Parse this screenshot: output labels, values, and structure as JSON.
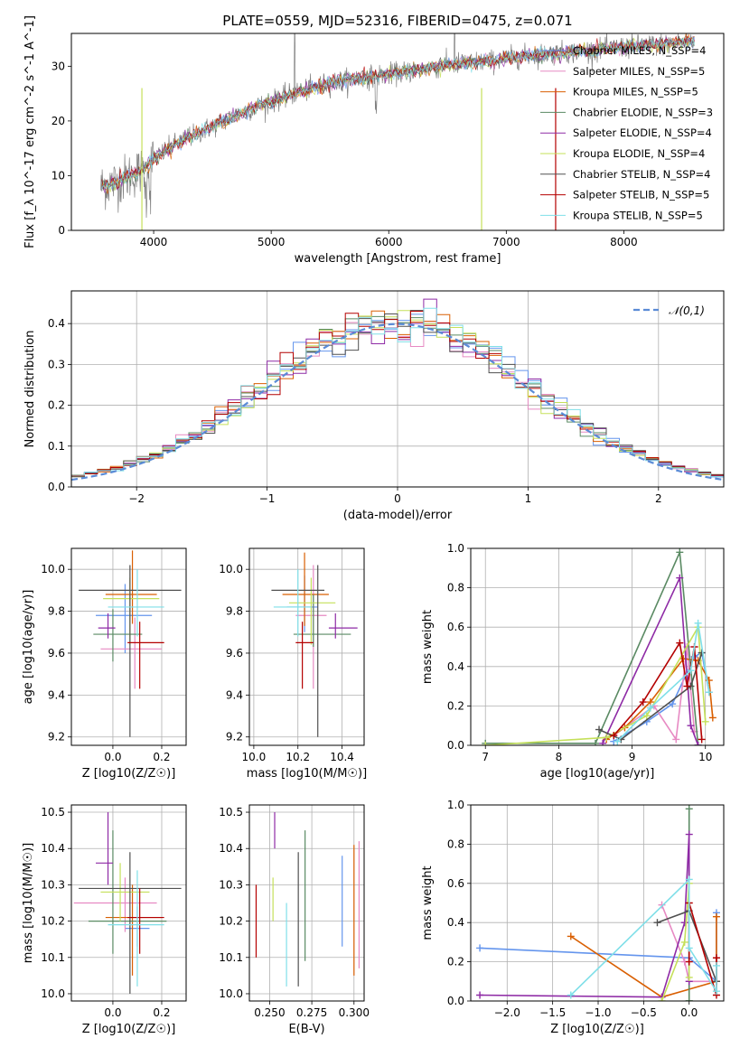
{
  "page": {
    "title": "PLATE=0559, MJD=52316, FIBERID=0475, z=0.071"
  },
  "colors": {
    "series": [
      "#6495ed",
      "#e78ac3",
      "#d95f02",
      "#5a8a63",
      "#8e2aa5",
      "#c5e05a",
      "#505050",
      "#b40000",
      "#7fdfe8"
    ]
  },
  "chart_data": [
    {
      "id": "spectrum",
      "type": "line",
      "title": "PLATE=0559, MJD=52316, FIBERID=0475, z=0.071",
      "xlabel": "wavelength [Angstrom, rest frame]",
      "ylabel": "Flux [f_λ 10^-17 erg cm^-2 s^-1 A^-1]",
      "xlim": [
        3300,
        8850
      ],
      "ylim": [
        0,
        36
      ],
      "xticks": [
        4000,
        5000,
        6000,
        7000,
        8000
      ],
      "yticks": [
        0,
        10,
        20,
        30
      ],
      "grid": false,
      "legend": "right",
      "series_names": [
        "Chabrier MILES, N_SSP=4",
        "Salpeter MILES, N_SSP=5",
        "Kroupa MILES, N_SSP=5",
        "Chabrier ELODIE, N_SSP=3",
        "Salpeter ELODIE, N_SSP=4",
        "Kroupa ELODIE, N_SSP=4",
        "Chabrier STELIB, N_SSP=4",
        "Salpeter STELIB, N_SSP=5",
        "Kroupa STELIB, N_SSP=5"
      ],
      "data_continuum": {
        "x": [
          3550,
          3700,
          3900,
          4000,
          4200,
          4500,
          4800,
          5000,
          5200,
          5500,
          5800,
          6000,
          6300,
          6600,
          6900,
          7000,
          7200,
          7500,
          7800,
          8000,
          8300,
          8600
        ],
        "y": [
          8,
          9,
          11,
          13,
          16,
          19,
          22,
          23.5,
          25,
          27,
          28,
          28.5,
          29.5,
          30.5,
          31,
          31.5,
          32,
          32.5,
          33,
          33.5,
          34,
          34.5
        ]
      }
    },
    {
      "id": "residuals",
      "type": "histogram",
      "xlabel": "(data-model)/error",
      "ylabel": "Normed distribution",
      "xlim": [
        -2.5,
        2.5
      ],
      "ylim": [
        0,
        0.48
      ],
      "xticks": [
        -2,
        -1,
        0,
        1,
        2
      ],
      "yticks": [
        0.0,
        0.1,
        0.2,
        0.3,
        0.4
      ],
      "grid": true,
      "legend": "top-right",
      "reference_label": "𝒩(0,1)",
      "bin_width": 0.1
    },
    {
      "id": "age-vs-Z",
      "type": "errorbar",
      "xlabel": "Z [log10(Z/Z☉)]",
      "ylabel": "age  [log10(age/yr)]",
      "xlim": [
        -0.17,
        0.3
      ],
      "ylim": [
        9.16,
        10.1
      ],
      "xticks": [
        0.0,
        0.2
      ],
      "yticks": [
        9.2,
        9.4,
        9.6,
        9.8,
        10.0
      ],
      "grid": true,
      "points": [
        {
          "x": 0.05,
          "y": 9.78,
          "xerr": [
            0.12,
            0.11
          ],
          "yerr": [
            0.18,
            0.15
          ]
        },
        {
          "x": 0.09,
          "y": 9.62,
          "xerr": [
            0.14,
            0.11
          ],
          "yerr": [
            0.19,
            0.15
          ]
        },
        {
          "x": 0.08,
          "y": 9.88,
          "xerr": [
            0.11,
            0.1
          ],
          "yerr": [
            0.14,
            0.21
          ]
        },
        {
          "x": 0.0,
          "y": 9.69,
          "xerr": [
            0.08,
            0.12
          ],
          "yerr": [
            0.13,
            0.12
          ]
        },
        {
          "x": -0.02,
          "y": 9.72,
          "xerr": [
            0.04,
            0.03
          ],
          "yerr": [
            0.05,
            0.07
          ]
        },
        {
          "x": 0.07,
          "y": 9.86,
          "xerr": [
            0.11,
            0.12
          ],
          "yerr": [
            0.22,
            0.1
          ]
        },
        {
          "x": 0.07,
          "y": 9.9,
          "xerr": [
            0.21,
            0.21
          ],
          "yerr": [
            0.7,
            0.12
          ]
        },
        {
          "x": 0.11,
          "y": 9.65,
          "xerr": [
            0.05,
            0.1
          ],
          "yerr": [
            0.22,
            0.1
          ]
        },
        {
          "x": 0.1,
          "y": 9.82,
          "xerr": [
            0.12,
            0.11
          ],
          "yerr": [
            0.14,
            0.18
          ]
        }
      ]
    },
    {
      "id": "age-vs-mass",
      "type": "errorbar",
      "xlabel": "mass [log10(M/M☉)]",
      "ylabel": "",
      "xlim": [
        9.98,
        10.5
      ],
      "ylim": [
        9.16,
        10.1
      ],
      "xticks": [
        10.0,
        10.2,
        10.4
      ],
      "yticks": [
        9.2,
        9.4,
        9.6,
        9.8,
        10.0
      ],
      "grid": true,
      "points": [
        {
          "x": 10.23,
          "y": 9.82,
          "xerr": [
            0.08,
            0.06
          ],
          "yerr": [
            0.12,
            0.15
          ]
        },
        {
          "x": 10.27,
          "y": 9.78,
          "xerr": [
            0.08,
            0.06
          ],
          "yerr": [
            0.35,
            0.24
          ]
        },
        {
          "x": 10.23,
          "y": 9.88,
          "xerr": [
            0.1,
            0.11
          ],
          "yerr": [
            0.15,
            0.2
          ]
        },
        {
          "x": 10.27,
          "y": 9.69,
          "xerr": [
            0.09,
            0.17
          ],
          "yerr": [
            0.06,
            0.19
          ]
        },
        {
          "x": 10.37,
          "y": 9.72,
          "xerr": [
            0.03,
            0.1
          ],
          "yerr": [
            0.05,
            0.07
          ]
        },
        {
          "x": 10.26,
          "y": 9.84,
          "xerr": [
            0.1,
            0.11
          ],
          "yerr": [
            0.2,
            0.12
          ]
        },
        {
          "x": 10.29,
          "y": 9.9,
          "xerr": [
            0.21,
            0.03
          ],
          "yerr": [
            0.7,
            0.12
          ]
        },
        {
          "x": 10.22,
          "y": 9.65,
          "xerr": [
            0.03,
            0.05
          ],
          "yerr": [
            0.22,
            0.1
          ]
        },
        {
          "x": 10.2,
          "y": 9.82,
          "xerr": [
            0.11,
            0.06
          ],
          "yerr": [
            0.14,
            0.18
          ]
        }
      ]
    },
    {
      "id": "massweight-vs-age",
      "type": "line",
      "xlabel": "age  [log10(age/yr)]",
      "ylabel": "mass weight",
      "xlim": [
        6.8,
        10.25
      ],
      "ylim": [
        0,
        1
      ],
      "xticks": [
        7,
        8,
        9,
        10
      ],
      "yticks": [
        0.0,
        0.2,
        0.4,
        0.6,
        0.8,
        1.0
      ],
      "grid": true,
      "series": [
        {
          "x": [
            8.75,
            9.2,
            9.55,
            9.85,
            9.95,
            10.05
          ],
          "y": [
            0.02,
            0.12,
            0.21,
            0.45,
            0.47,
            0.27
          ]
        },
        {
          "x": [
            8.75,
            9.3,
            9.6,
            9.75,
            9.85
          ],
          "y": [
            0.05,
            0.2,
            0.03,
            0.5,
            0.07
          ]
        },
        {
          "x": [
            8.65,
            8.9,
            9.25,
            9.7,
            9.9,
            10.05,
            10.1
          ],
          "y": [
            0.03,
            0.09,
            0.22,
            0.44,
            0.43,
            0.33,
            0.14
          ]
        },
        {
          "x": [
            7.0,
            8.5,
            9.65,
            9.9
          ],
          "y": [
            0.01,
            0.01,
            0.98,
            0.0
          ]
        },
        {
          "x": [
            8.6,
            9.65,
            9.8,
            9.9
          ],
          "y": [
            0.01,
            0.85,
            0.1,
            0.0
          ]
        },
        {
          "x": [
            7.0,
            8.65,
            9.2,
            9.9,
            10.0
          ],
          "y": [
            0.0,
            0.04,
            0.15,
            0.6,
            0.12
          ]
        },
        {
          "x": [
            8.55,
            8.85,
            9.8,
            9.95
          ],
          "y": [
            0.08,
            0.03,
            0.3,
            0.47
          ]
        },
        {
          "x": [
            8.75,
            9.15,
            9.65,
            9.75,
            9.85,
            9.95
          ],
          "y": [
            0.05,
            0.22,
            0.52,
            0.3,
            0.5,
            0.03
          ]
        },
        {
          "x": [
            8.8,
            9.25,
            9.8,
            9.9,
            10.05
          ],
          "y": [
            0.02,
            0.19,
            0.38,
            0.62,
            0.27
          ]
        }
      ]
    },
    {
      "id": "mass-vs-Z",
      "type": "errorbar",
      "xlabel": "Z [log10(Z/Z☉)]",
      "ylabel": "mass [log10(M/M☉)]",
      "xlim": [
        -0.17,
        0.3
      ],
      "ylim": [
        9.98,
        10.52
      ],
      "xticks": [
        0.0,
        0.2
      ],
      "yticks": [
        10.0,
        10.1,
        10.2,
        10.3,
        10.4,
        10.5
      ],
      "grid": true,
      "points": [
        {
          "x": 0.1,
          "y": 10.18,
          "xerr": [
            0.05,
            0.05
          ],
          "yerr": [
            0.05,
            0.06
          ]
        },
        {
          "x": 0.05,
          "y": 10.25,
          "xerr": [
            0.21,
            0.13
          ],
          "yerr": [
            0.08,
            0.07
          ]
        },
        {
          "x": 0.08,
          "y": 10.21,
          "xerr": [
            0.11,
            0.12
          ],
          "yerr": [
            0.16,
            0.09
          ]
        },
        {
          "x": 0.0,
          "y": 10.2,
          "xerr": [
            0.1,
            0.22
          ],
          "yerr": [
            0.09,
            0.25
          ]
        },
        {
          "x": -0.02,
          "y": 10.36,
          "xerr": [
            0.05,
            0.02
          ],
          "yerr": [
            0.06,
            0.14
          ]
        },
        {
          "x": 0.03,
          "y": 10.28,
          "xerr": [
            0.08,
            0.12
          ],
          "yerr": [
            0.08,
            0.08
          ]
        },
        {
          "x": 0.07,
          "y": 10.29,
          "xerr": [
            0.21,
            0.21
          ],
          "yerr": [
            0.29,
            0.1
          ]
        },
        {
          "x": 0.11,
          "y": 10.21,
          "xerr": [
            0.05,
            0.1
          ],
          "yerr": [
            0.1,
            0.08
          ]
        },
        {
          "x": 0.1,
          "y": 10.19,
          "xerr": [
            0.12,
            0.11
          ],
          "yerr": [
            0.17,
            0.15
          ]
        }
      ]
    },
    {
      "id": "mass-vs-ebv",
      "type": "errorbar",
      "xlabel": "E(B-V)",
      "ylabel": "",
      "xlim": [
        0.238,
        0.306
      ],
      "ylim": [
        9.98,
        10.52
      ],
      "xticks": [
        0.25,
        0.275,
        0.3
      ],
      "yticks": [
        10.0,
        10.1,
        10.2,
        10.3,
        10.4,
        10.5
      ],
      "grid": true,
      "points": [
        {
          "x": 0.293,
          "y": 10.26,
          "xerr": [
            0,
            0
          ],
          "yerr": [
            0.13,
            0.12
          ]
        },
        {
          "x": 0.303,
          "y": 10.25,
          "xerr": [
            0,
            0
          ],
          "yerr": [
            0.18,
            0.17
          ]
        },
        {
          "x": 0.3,
          "y": 10.23,
          "xerr": [
            0,
            0
          ],
          "yerr": [
            0.18,
            0.18
          ]
        },
        {
          "x": 0.271,
          "y": 10.27,
          "xerr": [
            0,
            0
          ],
          "yerr": [
            0.18,
            0.18
          ]
        },
        {
          "x": 0.253,
          "y": 10.45,
          "xerr": [
            0,
            0
          ],
          "yerr": [
            0.05,
            0.05
          ]
        },
        {
          "x": 0.252,
          "y": 10.25,
          "xerr": [
            0,
            0
          ],
          "yerr": [
            0.05,
            0.07
          ]
        },
        {
          "x": 0.267,
          "y": 10.19,
          "xerr": [
            0,
            0
          ],
          "yerr": [
            0.17,
            0.2
          ]
        },
        {
          "x": 0.242,
          "y": 10.2,
          "xerr": [
            0,
            0
          ],
          "yerr": [
            0.1,
            0.1
          ]
        },
        {
          "x": 0.26,
          "y": 10.13,
          "xerr": [
            0,
            0
          ],
          "yerr": [
            0.11,
            0.12
          ]
        }
      ]
    },
    {
      "id": "massweight-vs-Z",
      "type": "line",
      "xlabel": "Z [log10(Z/Z☉)]",
      "ylabel": "mass weight",
      "xlim": [
        -2.4,
        0.38
      ],
      "ylim": [
        0,
        1
      ],
      "xticks": [
        -2.0,
        -1.5,
        -1.0,
        -0.5,
        0.0
      ],
      "yticks": [
        0.0,
        0.2,
        0.4,
        0.6,
        0.8,
        1.0
      ],
      "grid": true,
      "series": [
        {
          "x": [
            -2.3,
            0.0,
            0.3,
            0.3
          ],
          "y": [
            0.27,
            0.22,
            0.1,
            0.45
          ]
        },
        {
          "x": [
            -0.3,
            -0.05,
            0.0,
            0.3
          ],
          "y": [
            0.49,
            0.2,
            0.1,
            0.1
          ]
        },
        {
          "x": [
            -1.3,
            -0.3,
            0.3,
            0.3
          ],
          "y": [
            0.33,
            0.02,
            0.1,
            0.43
          ]
        },
        {
          "x": [
            0.0,
            0.0,
            0.0
          ],
          "y": [
            0.0,
            0.98,
            0.0
          ]
        },
        {
          "x": [
            -2.3,
            -0.3,
            -0.05,
            0.0,
            0.0
          ],
          "y": [
            0.03,
            0.02,
            0.4,
            0.85,
            0.1
          ]
        },
        {
          "x": [
            -0.3,
            -0.05,
            0.0,
            0.0
          ],
          "y": [
            0.0,
            0.3,
            0.6,
            0.12
          ]
        },
        {
          "x": [
            -0.35,
            0.0,
            0.3
          ],
          "y": [
            0.4,
            0.46,
            0.1
          ]
        },
        {
          "x": [
            0.0,
            0.0,
            0.3,
            0.3
          ],
          "y": [
            0.2,
            0.5,
            0.03,
            0.22
          ]
        },
        {
          "x": [
            -1.3,
            0.0,
            0.0,
            0.3,
            0.3
          ],
          "y": [
            0.03,
            0.62,
            0.27,
            0.05,
            0.18
          ]
        }
      ]
    }
  ]
}
